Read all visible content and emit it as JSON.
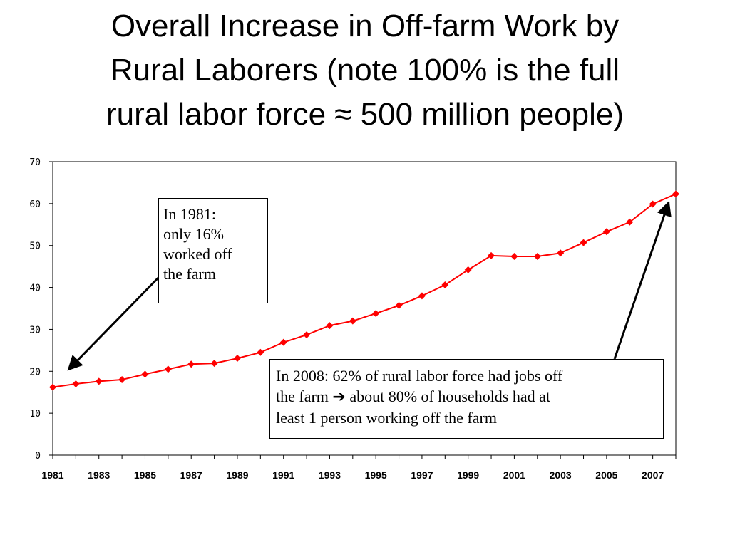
{
  "title_lines": [
    "Overall Increase in Off-farm Work by",
    "Rural Laborers (note 100% is the full",
    "rural labor force ≈ 500 million people)"
  ],
  "annotations": {
    "a1981": {
      "lines": [
        "In 1981:",
        "only 16%",
        "worked off",
        "the farm"
      ]
    },
    "a2008": {
      "line1": "In 2008: 62% of rural labor force had jobs off",
      "line2_pre": "the farm ",
      "line2_arrow": "➔",
      "line2_post": " about 80% of households had at",
      "line3": "least 1 person working off the farm"
    }
  },
  "chart_data": {
    "type": "line",
    "title": "Overall Increase in Off-farm Work by Rural Laborers (note 100% is the full rural labor force ≈ 500 million people)",
    "xlabel": "",
    "ylabel": "",
    "ylim": [
      0,
      70
    ],
    "yticks": [
      0,
      10,
      20,
      30,
      40,
      50,
      60,
      70
    ],
    "xticks": [
      1981,
      1983,
      1985,
      1987,
      1989,
      1991,
      1993,
      1995,
      1997,
      1999,
      2001,
      2003,
      2005,
      2007
    ],
    "grid": false,
    "legend": "none",
    "marker": "diamond",
    "color": "#ff0000",
    "series": [
      {
        "x": [
          1981,
          1982,
          1983,
          1984,
          1985,
          1986,
          1987,
          1988,
          1989,
          1990,
          1991,
          1992,
          1993,
          1994,
          1995,
          1996,
          1997,
          1998,
          1999,
          2000,
          2001,
          2002,
          2003,
          2004,
          2005,
          2006,
          2007,
          2008
        ],
        "values": [
          16.2,
          17.0,
          17.6,
          18.0,
          19.3,
          20.5,
          21.7,
          21.9,
          23.1,
          24.5,
          26.9,
          28.7,
          30.9,
          32.0,
          33.8,
          35.7,
          38.0,
          40.6,
          44.2,
          47.6,
          47.4,
          47.4,
          48.2,
          50.7,
          53.3,
          55.6,
          59.9,
          62.3
        ]
      }
    ]
  }
}
